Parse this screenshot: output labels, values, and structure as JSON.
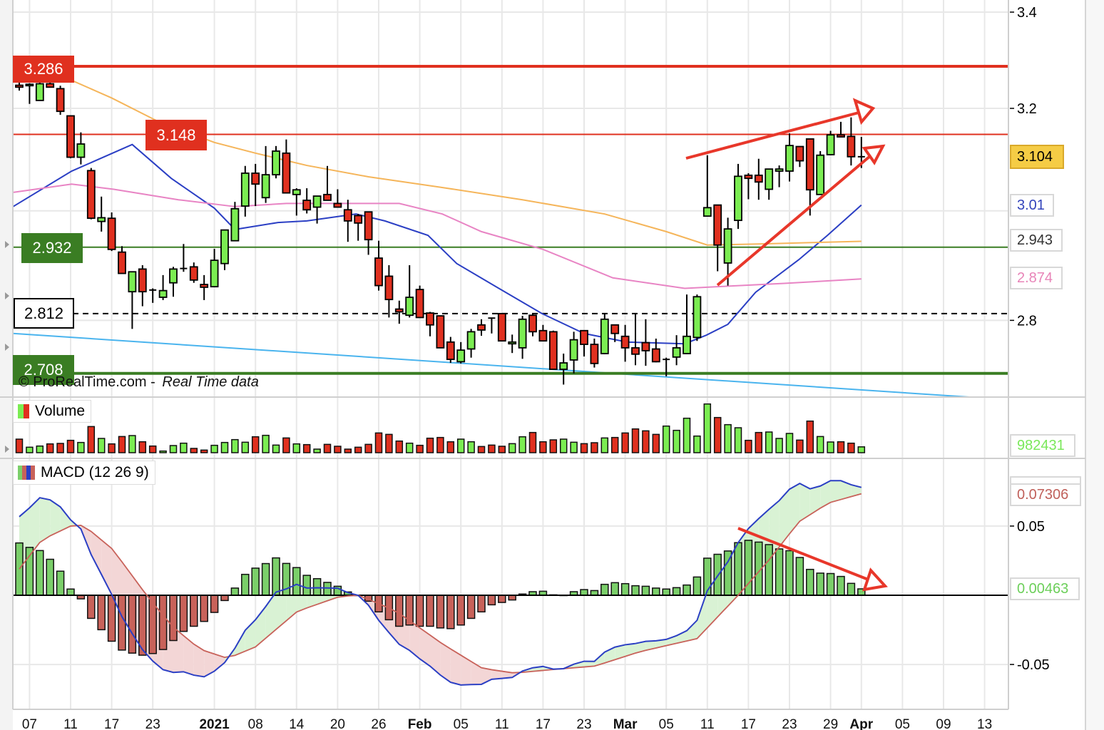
{
  "chart_data": {
    "type": "candlestick",
    "source": "© ProRealTime.com",
    "source_sep": "-",
    "source_note": "Real Time data",
    "x_labels": [
      {
        "i": 1,
        "label": "07",
        "bold": false
      },
      {
        "i": 5,
        "label": "11",
        "bold": false
      },
      {
        "i": 9,
        "label": "17",
        "bold": false
      },
      {
        "i": 13,
        "label": "23",
        "bold": false
      },
      {
        "i": 19,
        "label": "2021",
        "bold": true
      },
      {
        "i": 23,
        "label": "08",
        "bold": false
      },
      {
        "i": 27,
        "label": "14",
        "bold": false
      },
      {
        "i": 31,
        "label": "20",
        "bold": false
      },
      {
        "i": 35,
        "label": "26",
        "bold": false
      },
      {
        "i": 39,
        "label": "Feb",
        "bold": true
      },
      {
        "i": 43,
        "label": "05",
        "bold": false
      },
      {
        "i": 47,
        "label": "11",
        "bold": false
      },
      {
        "i": 51,
        "label": "17",
        "bold": false
      },
      {
        "i": 55,
        "label": "23",
        "bold": false
      },
      {
        "i": 59,
        "label": "Mar",
        "bold": true
      },
      {
        "i": 63,
        "label": "05",
        "bold": false
      },
      {
        "i": 67,
        "label": "11",
        "bold": false
      },
      {
        "i": 71,
        "label": "17",
        "bold": false
      },
      {
        "i": 75,
        "label": "23",
        "bold": false
      },
      {
        "i": 79,
        "label": "29",
        "bold": false
      },
      {
        "i": 82,
        "label": "Apr",
        "bold": true
      },
      {
        "i": 86,
        "label": "05",
        "bold": false
      },
      {
        "i": 90,
        "label": "09",
        "bold": false
      },
      {
        "i": 94,
        "label": "13",
        "bold": false
      }
    ],
    "price": {
      "scale": "log",
      "ylim": [
        2.66,
        3.42
      ],
      "grid": [
        3.4,
        3.2,
        3.0,
        2.8
      ],
      "ticks": [
        "3.4",
        "3.2",
        "2.8"
      ],
      "candles_ohlc": [
        [
          3.247,
          3.253,
          3.236,
          3.243
        ],
        [
          3.246,
          3.251,
          3.209,
          3.249
        ],
        [
          3.216,
          3.256,
          3.216,
          3.25
        ],
        [
          3.25,
          3.256,
          3.243,
          3.243
        ],
        [
          3.24,
          3.246,
          3.187,
          3.194
        ],
        [
          3.185,
          3.185,
          3.101,
          3.103
        ],
        [
          3.103,
          3.152,
          3.089,
          3.129
        ],
        [
          3.077,
          3.082,
          2.984,
          2.986
        ],
        [
          2.98,
          3.027,
          2.961,
          2.987
        ],
        [
          2.986,
          2.997,
          2.925,
          2.928
        ],
        [
          2.923,
          2.934,
          2.884,
          2.884
        ],
        [
          2.851,
          2.888,
          2.785,
          2.887
        ],
        [
          2.892,
          2.899,
          2.825,
          2.851
        ],
        [
          2.854,
          2.857,
          2.831,
          2.853
        ],
        [
          2.841,
          2.881,
          2.836,
          2.853
        ],
        [
          2.867,
          2.896,
          2.842,
          2.892
        ],
        [
          2.893,
          2.938,
          2.887,
          2.893
        ],
        [
          2.896,
          2.904,
          2.867,
          2.872
        ],
        [
          2.864,
          2.881,
          2.836,
          2.859
        ],
        [
          2.86,
          2.929,
          2.86,
          2.908
        ],
        [
          2.902,
          2.964,
          2.89,
          2.964
        ],
        [
          2.944,
          3.017,
          2.944,
          3.004
        ],
        [
          3.009,
          3.086,
          2.989,
          3.072
        ],
        [
          3.072,
          3.09,
          3.009,
          3.051
        ],
        [
          3.025,
          3.125,
          3.015,
          3.069
        ],
        [
          3.069,
          3.125,
          3.062,
          3.115
        ],
        [
          3.111,
          3.138,
          3.034,
          3.034
        ],
        [
          3.031,
          3.043,
          2.991,
          3.04
        ],
        [
          3.02,
          3.043,
          2.995,
          3.002
        ],
        [
          3.007,
          3.028,
          2.976,
          3.028
        ],
        [
          3.031,
          3.086,
          3.02,
          3.02
        ],
        [
          3.014,
          3.041,
          3.007,
          3.007
        ],
        [
          3.002,
          3.021,
          2.942,
          2.981
        ],
        [
          2.991,
          2.994,
          2.944,
          2.977
        ],
        [
          2.998,
          2.998,
          2.918,
          2.946
        ],
        [
          2.912,
          2.944,
          2.853,
          2.862
        ],
        [
          2.879,
          2.899,
          2.805,
          2.837
        ],
        [
          2.82,
          2.835,
          2.794,
          2.815
        ],
        [
          2.809,
          2.899,
          2.805,
          2.841
        ],
        [
          2.855,
          2.862,
          2.805,
          2.805
        ],
        [
          2.813,
          2.815,
          2.772,
          2.792
        ],
        [
          2.808,
          2.808,
          2.752,
          2.752
        ],
        [
          2.762,
          2.771,
          2.726,
          2.732
        ],
        [
          2.728,
          2.762,
          2.725,
          2.748
        ],
        [
          2.75,
          2.785,
          2.735,
          2.78
        ],
        [
          2.792,
          2.802,
          2.773,
          2.783
        ],
        [
          2.804,
          2.805,
          2.777,
          2.803
        ],
        [
          2.812,
          2.812,
          2.763,
          2.764
        ],
        [
          2.759,
          2.775,
          2.743,
          2.762
        ],
        [
          2.752,
          2.808,
          2.733,
          2.802
        ],
        [
          2.809,
          2.812,
          2.772,
          2.78
        ],
        [
          2.782,
          2.792,
          2.764,
          2.764
        ],
        [
          2.78,
          2.782,
          2.715,
          2.715
        ],
        [
          2.715,
          2.742,
          2.689,
          2.726
        ],
        [
          2.731,
          2.78,
          2.708,
          2.766
        ],
        [
          2.782,
          2.782,
          2.737,
          2.758
        ],
        [
          2.758,
          2.768,
          2.718,
          2.725
        ],
        [
          2.742,
          2.812,
          2.741,
          2.802
        ],
        [
          2.792,
          2.792,
          2.762,
          2.777
        ],
        [
          2.772,
          2.792,
          2.728,
          2.752
        ],
        [
          2.752,
          2.812,
          2.722,
          2.741
        ],
        [
          2.761,
          2.802,
          2.721,
          2.747
        ],
        [
          2.75,
          2.768,
          2.727,
          2.728
        ],
        [
          2.732,
          2.735,
          2.703,
          2.732
        ],
        [
          2.736,
          2.774,
          2.722,
          2.752
        ],
        [
          2.742,
          2.846,
          2.742,
          2.772
        ],
        [
          2.77,
          2.846,
          2.764,
          2.842
        ],
        [
          2.99,
          3.107,
          2.99,
          3.006
        ],
        [
          3.011,
          3.011,
          2.888,
          2.936
        ],
        [
          2.903,
          2.987,
          2.862,
          2.966
        ],
        [
          2.982,
          3.09,
          2.966,
          3.066
        ],
        [
          3.068,
          3.072,
          3.022,
          3.062
        ],
        [
          3.068,
          3.1,
          3.021,
          3.055
        ],
        [
          3.041,
          3.08,
          3.021,
          3.08
        ],
        [
          3.076,
          3.087,
          3.045,
          3.08
        ],
        [
          3.076,
          3.15,
          3.056,
          3.126
        ],
        [
          3.124,
          3.124,
          3.084,
          3.096
        ],
        [
          3.139,
          3.139,
          2.991,
          3.04
        ],
        [
          3.031,
          3.115,
          3.031,
          3.107
        ],
        [
          3.108,
          3.155,
          3.107,
          3.147
        ],
        [
          3.147,
          3.173,
          3.143,
          3.143
        ],
        [
          3.144,
          3.182,
          3.087,
          3.104
        ],
        [
          3.104,
          3.143,
          3.082,
          3.104
        ]
      ],
      "last_price": "3.104"
    },
    "moving_averages": [
      {
        "name": "ma-blue",
        "color": "#2b3fc4",
        "last": "3.01",
        "points": [
          [
            -0.6,
            3.008
          ],
          [
            5.1,
            3.076
          ],
          [
            11,
            3.128
          ],
          [
            14.8,
            3.062
          ],
          [
            19,
            3.005
          ],
          [
            21,
            2.965
          ],
          [
            25.2,
            2.978
          ],
          [
            28,
            2.981
          ],
          [
            32.8,
            2.994
          ],
          [
            35.6,
            2.981
          ],
          [
            39.8,
            2.954
          ],
          [
            42.6,
            2.902
          ],
          [
            46.7,
            2.857
          ],
          [
            50.9,
            2.812
          ],
          [
            55,
            2.777
          ],
          [
            59.2,
            2.762
          ],
          [
            64.8,
            2.759
          ],
          [
            66.9,
            2.774
          ],
          [
            69,
            2.793
          ],
          [
            71.7,
            2.85
          ],
          [
            75.9,
            2.909
          ],
          [
            78.7,
            2.954
          ],
          [
            82,
            3.011
          ]
        ]
      },
      {
        "name": "ma-gray",
        "color": "#f5b55a",
        "last": "2.943",
        "points": [
          [
            5.1,
            3.257
          ],
          [
            9,
            3.221
          ],
          [
            13.4,
            3.175
          ],
          [
            19,
            3.132
          ],
          [
            23,
            3.111
          ],
          [
            28,
            3.087
          ],
          [
            34,
            3.065
          ],
          [
            41,
            3.045
          ],
          [
            49,
            3.021
          ],
          [
            57,
            2.994
          ],
          [
            63,
            2.961
          ],
          [
            67,
            2.936
          ],
          [
            72,
            2.938
          ],
          [
            82,
            2.943
          ]
        ]
      },
      {
        "name": "ma-pink",
        "color": "#e884c4",
        "last": "2.874",
        "points": [
          [
            -0.6,
            3.035
          ],
          [
            5.1,
            3.051
          ],
          [
            9.2,
            3.041
          ],
          [
            15.5,
            3.021
          ],
          [
            21,
            3.008
          ],
          [
            26,
            3.014
          ],
          [
            33,
            3.014
          ],
          [
            37,
            3.014
          ],
          [
            41.2,
            2.994
          ],
          [
            45,
            2.961
          ],
          [
            51,
            2.928
          ],
          [
            57.8,
            2.876
          ],
          [
            64.8,
            2.857
          ],
          [
            68,
            2.86
          ],
          [
            74.5,
            2.866
          ],
          [
            82,
            2.874
          ]
        ]
      }
    ],
    "trendline": {
      "color": "#4ab4ee",
      "points": [
        [
          -0.6,
          2.777
        ],
        [
          93.3,
          2.667
        ]
      ]
    },
    "levels": [
      {
        "value": 3.286,
        "label": "3.286",
        "color": "#e0301f",
        "style": "thick"
      },
      {
        "value": 3.148,
        "label": "3.148",
        "color": "#e0301f",
        "style": "thin"
      },
      {
        "value": 2.932,
        "label": "2.932",
        "color": "#3a7d23",
        "style": "thin"
      },
      {
        "value": 2.812,
        "label": "2.812",
        "color": "#000000",
        "style": "dashed"
      },
      {
        "value": 2.708,
        "label": "2.708",
        "color": "#3a7d23",
        "style": "thick"
      }
    ],
    "volume": {
      "label": "Volume",
      "last": "982431",
      "values": [
        2280000,
        920000,
        1120000,
        1480000,
        1560000,
        2080000,
        1720000,
        4400000,
        2400000,
        1480000,
        2720000,
        2880000,
        1840000,
        1120000,
        280000,
        1200000,
        1600000,
        720000,
        440000,
        1240000,
        1720000,
        2200000,
        1760000,
        2680000,
        2920000,
        1280000,
        2480000,
        1480000,
        1360000,
        600000,
        1400000,
        1080000,
        600000,
        920000,
        1400000,
        3320000,
        3080000,
        1960000,
        1600000,
        1240000,
        2440000,
        2560000,
        1840000,
        2280000,
        1840000,
        1040000,
        1280000,
        1080000,
        1520000,
        2680000,
        3400000,
        1840000,
        2160000,
        2280000,
        1760000,
        1520000,
        1680000,
        2480000,
        2560000,
        3320000,
        4000000,
        3680000,
        3080000,
        4480000,
        3760000,
        5800000,
        2800000,
        8200000,
        5920000,
        4720000,
        4200000,
        2080000,
        3400000,
        3480000,
        2400000,
        3240000,
        2120000,
        5320000,
        2720000,
        1800000,
        1840000,
        1600000,
        982431
      ]
    },
    "macd": {
      "label": "MACD (12 26 9)",
      "grid": [
        0.05,
        -0.05
      ],
      "ticks": [
        "0.05",
        "-0.05"
      ],
      "signal_last": "0.07306",
      "histogram_last": "0.00463",
      "histogram": [
        0.0378,
        0.0346,
        0.0323,
        0.026,
        0.0174,
        0.0045,
        -0.0026,
        -0.0167,
        -0.0249,
        -0.0332,
        -0.0396,
        -0.0418,
        -0.0433,
        -0.0421,
        -0.0392,
        -0.0327,
        -0.0261,
        -0.0224,
        -0.0189,
        -0.0124,
        -0.0038,
        0.0052,
        0.0151,
        0.0196,
        0.0229,
        0.027,
        0.023,
        0.02,
        0.0144,
        0.012,
        0.0093,
        0.0065,
        0.0024,
        0.0,
        -0.0043,
        -0.012,
        -0.0177,
        -0.0224,
        -0.0215,
        -0.0224,
        -0.0224,
        -0.0236,
        -0.0241,
        -0.0215,
        -0.0167,
        -0.012,
        -0.0069,
        -0.0052,
        -0.0034,
        0.0009,
        0.0026,
        0.0029,
        0.0003,
        0.0,
        0.0026,
        0.0041,
        0.0034,
        0.0079,
        0.0091,
        0.0084,
        0.0069,
        0.0065,
        0.0052,
        0.0045,
        0.0055,
        0.0074,
        0.0132,
        0.0268,
        0.0296,
        0.032,
        0.038,
        0.0397,
        0.0384,
        0.0366,
        0.0335,
        0.0322,
        0.0273,
        0.0187,
        0.016,
        0.0157,
        0.0136,
        0.0086,
        0.00463
      ],
      "signal": [
        [
          -0.4,
          0.0151
        ],
        [
          2.2,
          0.0401
        ],
        [
          5.2,
          0.0507
        ],
        [
          6.3,
          0.0504
        ],
        [
          9.1,
          0.0332
        ],
        [
          12.4,
          0.0
        ],
        [
          14.8,
          -0.0218
        ],
        [
          17.6,
          -0.039
        ],
        [
          20.3,
          -0.0456
        ],
        [
          23,
          -0.0373
        ],
        [
          27.1,
          -0.0115
        ],
        [
          31.2,
          -0.0009
        ],
        [
          33.1,
          0.0
        ],
        [
          36.7,
          -0.0115
        ],
        [
          41.3,
          -0.0356
        ],
        [
          45.1,
          -0.0528
        ],
        [
          48.2,
          -0.0562
        ],
        [
          51.9,
          -0.0537
        ],
        [
          56.1,
          -0.0511
        ],
        [
          60.4,
          -0.0408
        ],
        [
          66,
          -0.0313
        ],
        [
          70,
          0.0
        ],
        [
          73.1,
          0.0263
        ],
        [
          75.9,
          0.053
        ],
        [
          78.8,
          0.0667
        ],
        [
          82,
          0.0733
        ]
      ]
    },
    "colors": {
      "up": "#7bed52",
      "down": "#e0301f",
      "macd_line": "#2b3fc4",
      "signal_line": "#c8625a",
      "annotation": "#e8372a"
    }
  }
}
